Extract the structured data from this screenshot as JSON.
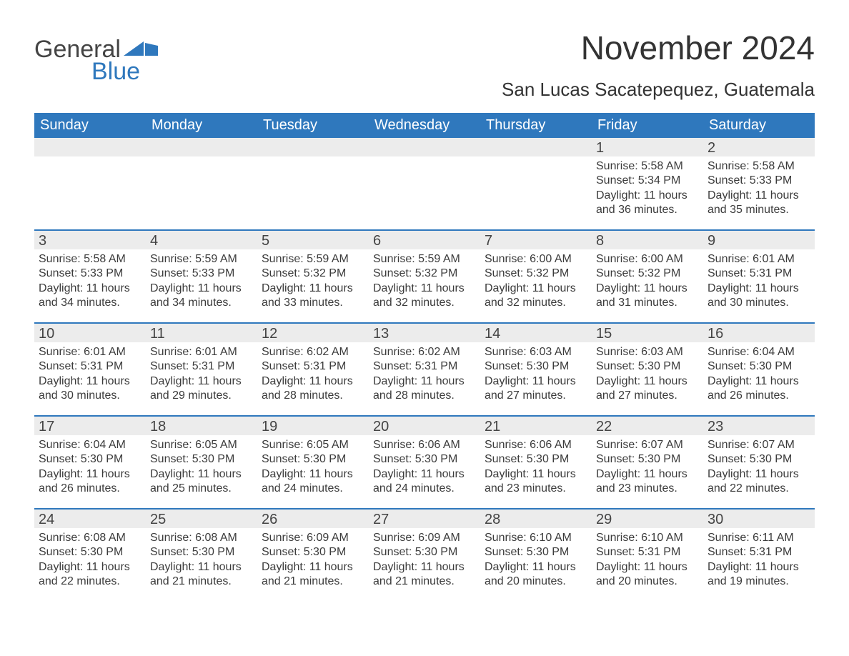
{
  "colors": {
    "brand_blue": "#2f78bd",
    "header_bg": "#2f78bd",
    "header_text": "#ffffff",
    "daynum_bg": "#ececec",
    "text": "#3b3b3b",
    "divider": "#2f78bd",
    "page_bg": "#ffffff"
  },
  "fonts": {
    "family": "Arial, Helvetica, sans-serif",
    "title_size_pt": 34,
    "location_size_pt": 20,
    "header_size_pt": 15,
    "body_size_pt": 12,
    "daynum_size_pt": 15
  },
  "logo": {
    "text1": "General",
    "text2": "Blue"
  },
  "title": "November 2024",
  "location": "San Lucas Sacatepequez, Guatemala",
  "weekday_labels": [
    "Sunday",
    "Monday",
    "Tuesday",
    "Wednesday",
    "Thursday",
    "Friday",
    "Saturday"
  ],
  "labels": {
    "sunrise": "Sunrise",
    "sunset": "Sunset",
    "daylight": "Daylight"
  },
  "start_day_index": 5,
  "days": [
    {
      "n": 1,
      "sunrise": "5:58 AM",
      "sunset": "5:34 PM",
      "dl_h": 11,
      "dl_m": 36
    },
    {
      "n": 2,
      "sunrise": "5:58 AM",
      "sunset": "5:33 PM",
      "dl_h": 11,
      "dl_m": 35
    },
    {
      "n": 3,
      "sunrise": "5:58 AM",
      "sunset": "5:33 PM",
      "dl_h": 11,
      "dl_m": 34
    },
    {
      "n": 4,
      "sunrise": "5:59 AM",
      "sunset": "5:33 PM",
      "dl_h": 11,
      "dl_m": 34
    },
    {
      "n": 5,
      "sunrise": "5:59 AM",
      "sunset": "5:32 PM",
      "dl_h": 11,
      "dl_m": 33
    },
    {
      "n": 6,
      "sunrise": "5:59 AM",
      "sunset": "5:32 PM",
      "dl_h": 11,
      "dl_m": 32
    },
    {
      "n": 7,
      "sunrise": "6:00 AM",
      "sunset": "5:32 PM",
      "dl_h": 11,
      "dl_m": 32
    },
    {
      "n": 8,
      "sunrise": "6:00 AM",
      "sunset": "5:32 PM",
      "dl_h": 11,
      "dl_m": 31
    },
    {
      "n": 9,
      "sunrise": "6:01 AM",
      "sunset": "5:31 PM",
      "dl_h": 11,
      "dl_m": 30
    },
    {
      "n": 10,
      "sunrise": "6:01 AM",
      "sunset": "5:31 PM",
      "dl_h": 11,
      "dl_m": 30
    },
    {
      "n": 11,
      "sunrise": "6:01 AM",
      "sunset": "5:31 PM",
      "dl_h": 11,
      "dl_m": 29
    },
    {
      "n": 12,
      "sunrise": "6:02 AM",
      "sunset": "5:31 PM",
      "dl_h": 11,
      "dl_m": 28
    },
    {
      "n": 13,
      "sunrise": "6:02 AM",
      "sunset": "5:31 PM",
      "dl_h": 11,
      "dl_m": 28
    },
    {
      "n": 14,
      "sunrise": "6:03 AM",
      "sunset": "5:30 PM",
      "dl_h": 11,
      "dl_m": 27
    },
    {
      "n": 15,
      "sunrise": "6:03 AM",
      "sunset": "5:30 PM",
      "dl_h": 11,
      "dl_m": 27
    },
    {
      "n": 16,
      "sunrise": "6:04 AM",
      "sunset": "5:30 PM",
      "dl_h": 11,
      "dl_m": 26
    },
    {
      "n": 17,
      "sunrise": "6:04 AM",
      "sunset": "5:30 PM",
      "dl_h": 11,
      "dl_m": 26
    },
    {
      "n": 18,
      "sunrise": "6:05 AM",
      "sunset": "5:30 PM",
      "dl_h": 11,
      "dl_m": 25
    },
    {
      "n": 19,
      "sunrise": "6:05 AM",
      "sunset": "5:30 PM",
      "dl_h": 11,
      "dl_m": 24
    },
    {
      "n": 20,
      "sunrise": "6:06 AM",
      "sunset": "5:30 PM",
      "dl_h": 11,
      "dl_m": 24
    },
    {
      "n": 21,
      "sunrise": "6:06 AM",
      "sunset": "5:30 PM",
      "dl_h": 11,
      "dl_m": 23
    },
    {
      "n": 22,
      "sunrise": "6:07 AM",
      "sunset": "5:30 PM",
      "dl_h": 11,
      "dl_m": 23
    },
    {
      "n": 23,
      "sunrise": "6:07 AM",
      "sunset": "5:30 PM",
      "dl_h": 11,
      "dl_m": 22
    },
    {
      "n": 24,
      "sunrise": "6:08 AM",
      "sunset": "5:30 PM",
      "dl_h": 11,
      "dl_m": 22
    },
    {
      "n": 25,
      "sunrise": "6:08 AM",
      "sunset": "5:30 PM",
      "dl_h": 11,
      "dl_m": 21
    },
    {
      "n": 26,
      "sunrise": "6:09 AM",
      "sunset": "5:30 PM",
      "dl_h": 11,
      "dl_m": 21
    },
    {
      "n": 27,
      "sunrise": "6:09 AM",
      "sunset": "5:30 PM",
      "dl_h": 11,
      "dl_m": 21
    },
    {
      "n": 28,
      "sunrise": "6:10 AM",
      "sunset": "5:30 PM",
      "dl_h": 11,
      "dl_m": 20
    },
    {
      "n": 29,
      "sunrise": "6:10 AM",
      "sunset": "5:31 PM",
      "dl_h": 11,
      "dl_m": 20
    },
    {
      "n": 30,
      "sunrise": "6:11 AM",
      "sunset": "5:31 PM",
      "dl_h": 11,
      "dl_m": 19
    }
  ]
}
